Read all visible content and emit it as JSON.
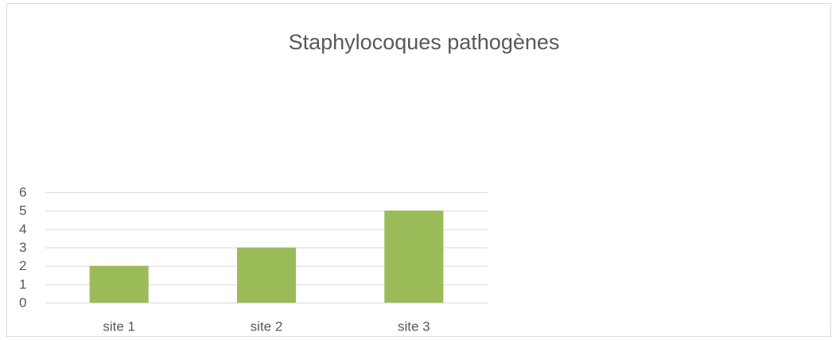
{
  "chart_data": {
    "type": "bar",
    "title": "Staphylocoques pathogènes",
    "categories": [
      "site 1",
      "site 2",
      "site 3"
    ],
    "values": [
      2,
      3,
      5
    ],
    "color": "#9bbb59",
    "ylim": [
      0,
      6
    ],
    "yticks": [
      0,
      1,
      2,
      3,
      4,
      5,
      6
    ],
    "grid": true
  }
}
